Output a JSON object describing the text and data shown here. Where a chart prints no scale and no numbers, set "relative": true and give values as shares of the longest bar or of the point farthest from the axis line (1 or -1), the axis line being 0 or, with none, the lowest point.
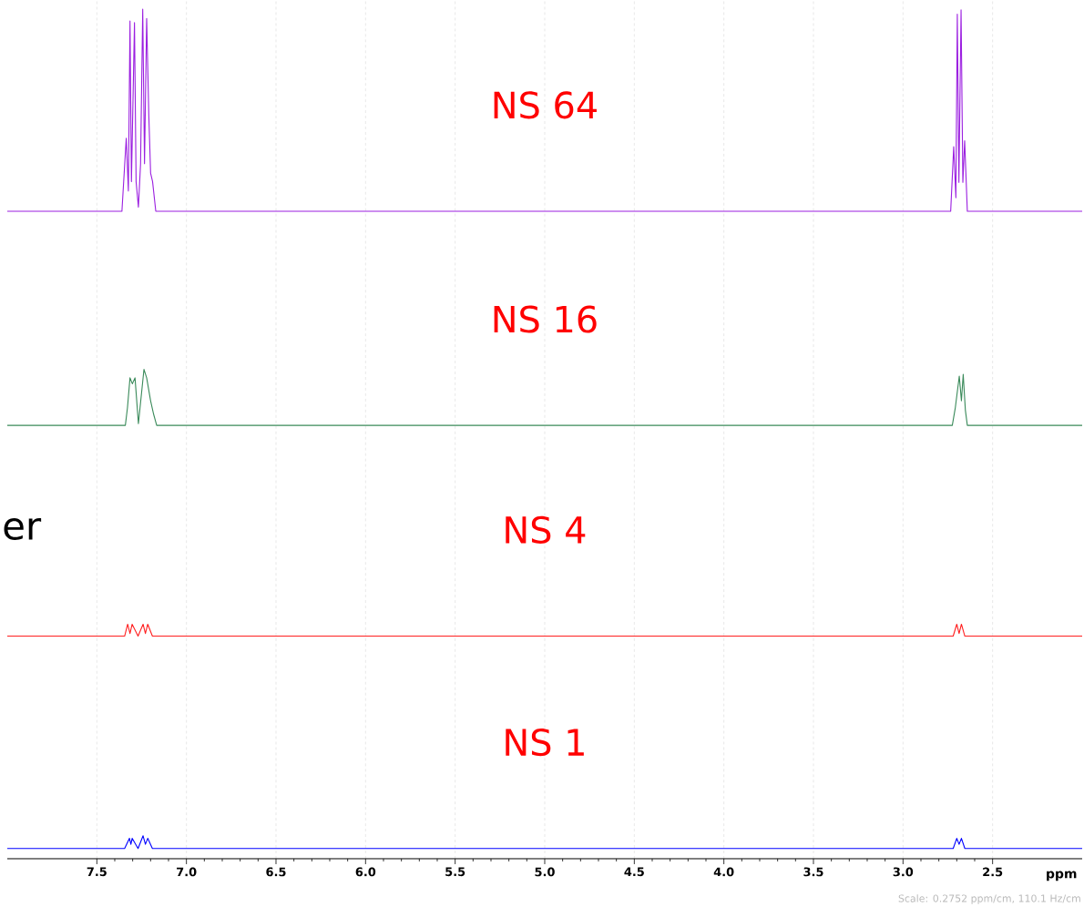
{
  "chart_data": {
    "type": "line",
    "relative": true,
    "xlabel": "ppm",
    "xlim": [
      8.0,
      2.0
    ],
    "xticks": [
      7.5,
      {
        "value": 7,
        "label": "7.0"
      },
      6.5,
      {
        "value": 6,
        "label": "6.0"
      },
      5.5,
      {
        "value": 5,
        "label": "5.0"
      },
      4.5,
      {
        "value": 4,
        "label": "4.0"
      },
      3.5,
      {
        "value": 3,
        "label": "3.0"
      },
      2.5
    ],
    "grid": "x",
    "annotations": [
      "er",
      "Scale: 0.2752 ppm/cm, 110.1 Hz/cm"
    ],
    "series": [
      {
        "name": "NS 64",
        "color": "#9b1fe0",
        "x": [
          8.0,
          7.36,
          7.336,
          7.324,
          7.315,
          7.307,
          7.29,
          7.281,
          7.268,
          7.256,
          7.244,
          7.234,
          7.222,
          7.21,
          7.2,
          7.189,
          7.171,
          2.734,
          2.717,
          2.705,
          2.697,
          2.688,
          2.676,
          2.666,
          2.656,
          2.641,
          2.0
        ],
        "values": [
          0.762,
          0.762,
          0.848,
          0.786,
          0.986,
          0.797,
          0.984,
          0.797,
          0.767,
          0.818,
          1.0,
          0.818,
          0.989,
          0.875,
          0.807,
          0.797,
          0.762,
          0.762,
          0.838,
          0.778,
          0.994,
          0.796,
          0.999,
          0.796,
          0.845,
          0.762,
          0.762
        ]
      },
      {
        "name": "NS 16",
        "color": "#3a8a5a",
        "x": [
          8.0,
          7.341,
          7.329,
          7.315,
          7.302,
          7.287,
          7.268,
          7.237,
          7.222,
          7.2,
          7.183,
          7.166,
          2.725,
          2.708,
          2.686,
          2.674,
          2.664,
          2.652,
          2.641,
          2.0
        ],
        "values": [
          0.51,
          0.51,
          0.531,
          0.566,
          0.559,
          0.566,
          0.512,
          0.576,
          0.566,
          0.539,
          0.523,
          0.51,
          0.51,
          0.531,
          0.568,
          0.539,
          0.57,
          0.528,
          0.51,
          0.51
        ]
      },
      {
        "name": "NS 4",
        "color": "#ff2020",
        "x": [
          8.0,
          7.345,
          7.328,
          7.315,
          7.303,
          7.27,
          7.242,
          7.229,
          7.216,
          7.19,
          2.72,
          2.7,
          2.687,
          2.674,
          2.655,
          2.0
        ],
        "values": [
          0.262,
          0.262,
          0.276,
          0.265,
          0.276,
          0.262,
          0.276,
          0.265,
          0.276,
          0.262,
          0.262,
          0.276,
          0.265,
          0.276,
          0.262,
          0.262
        ]
      },
      {
        "name": "NS 1",
        "color": "#0000ff",
        "x": [
          8.0,
          7.345,
          7.318,
          7.31,
          7.303,
          7.27,
          7.242,
          7.229,
          7.216,
          7.19,
          2.72,
          2.7,
          2.687,
          2.674,
          2.655,
          2.0
        ],
        "values": [
          0.012,
          0.012,
          0.024,
          0.017,
          0.024,
          0.012,
          0.027,
          0.017,
          0.024,
          0.012,
          0.012,
          0.024,
          0.017,
          0.024,
          0.012,
          0.012
        ]
      }
    ]
  }
}
